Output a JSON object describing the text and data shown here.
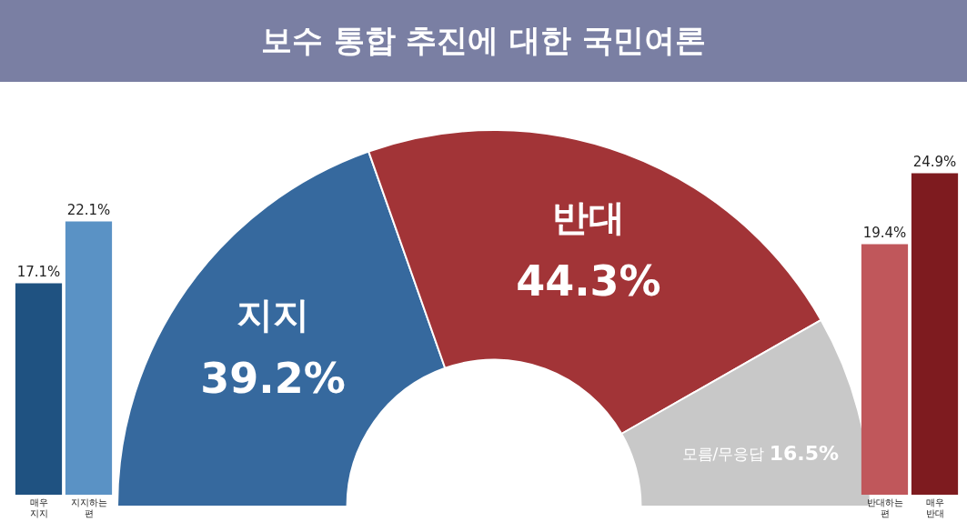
{
  "chart_data": [
    {
      "type": "bar",
      "categories": [
        "매우 지지",
        "지지하는 편"
      ],
      "values": [
        17.1,
        22.1
      ],
      "colors": [
        "#1f5281",
        "#5a92c5"
      ],
      "value_labels": [
        "17.1%",
        "22.1%"
      ],
      "tick_labels": "x",
      "legend": false,
      "grid": false
    },
    {
      "type": "donut",
      "title": "보수 통합 추진에 대한 국민여론",
      "categories": [
        "지지",
        "반대",
        "모름/무응답"
      ],
      "values": [
        39.2,
        44.3,
        16.5
      ],
      "colors": [
        "#36699e",
        "#a23437",
        "#c8c8c8"
      ],
      "value_labels": [
        "39.2%",
        "44.3%",
        "16.5%"
      ],
      "legend": false
    },
    {
      "type": "bar",
      "categories": [
        "반대하는 편",
        "매우 반대"
      ],
      "values": [
        19.4,
        24.9
      ],
      "colors": [
        "#c0575b",
        "#7e1b1f"
      ],
      "value_labels": [
        "19.4%",
        "24.9%"
      ],
      "tick_labels": "x",
      "legend": false,
      "grid": false
    }
  ]
}
